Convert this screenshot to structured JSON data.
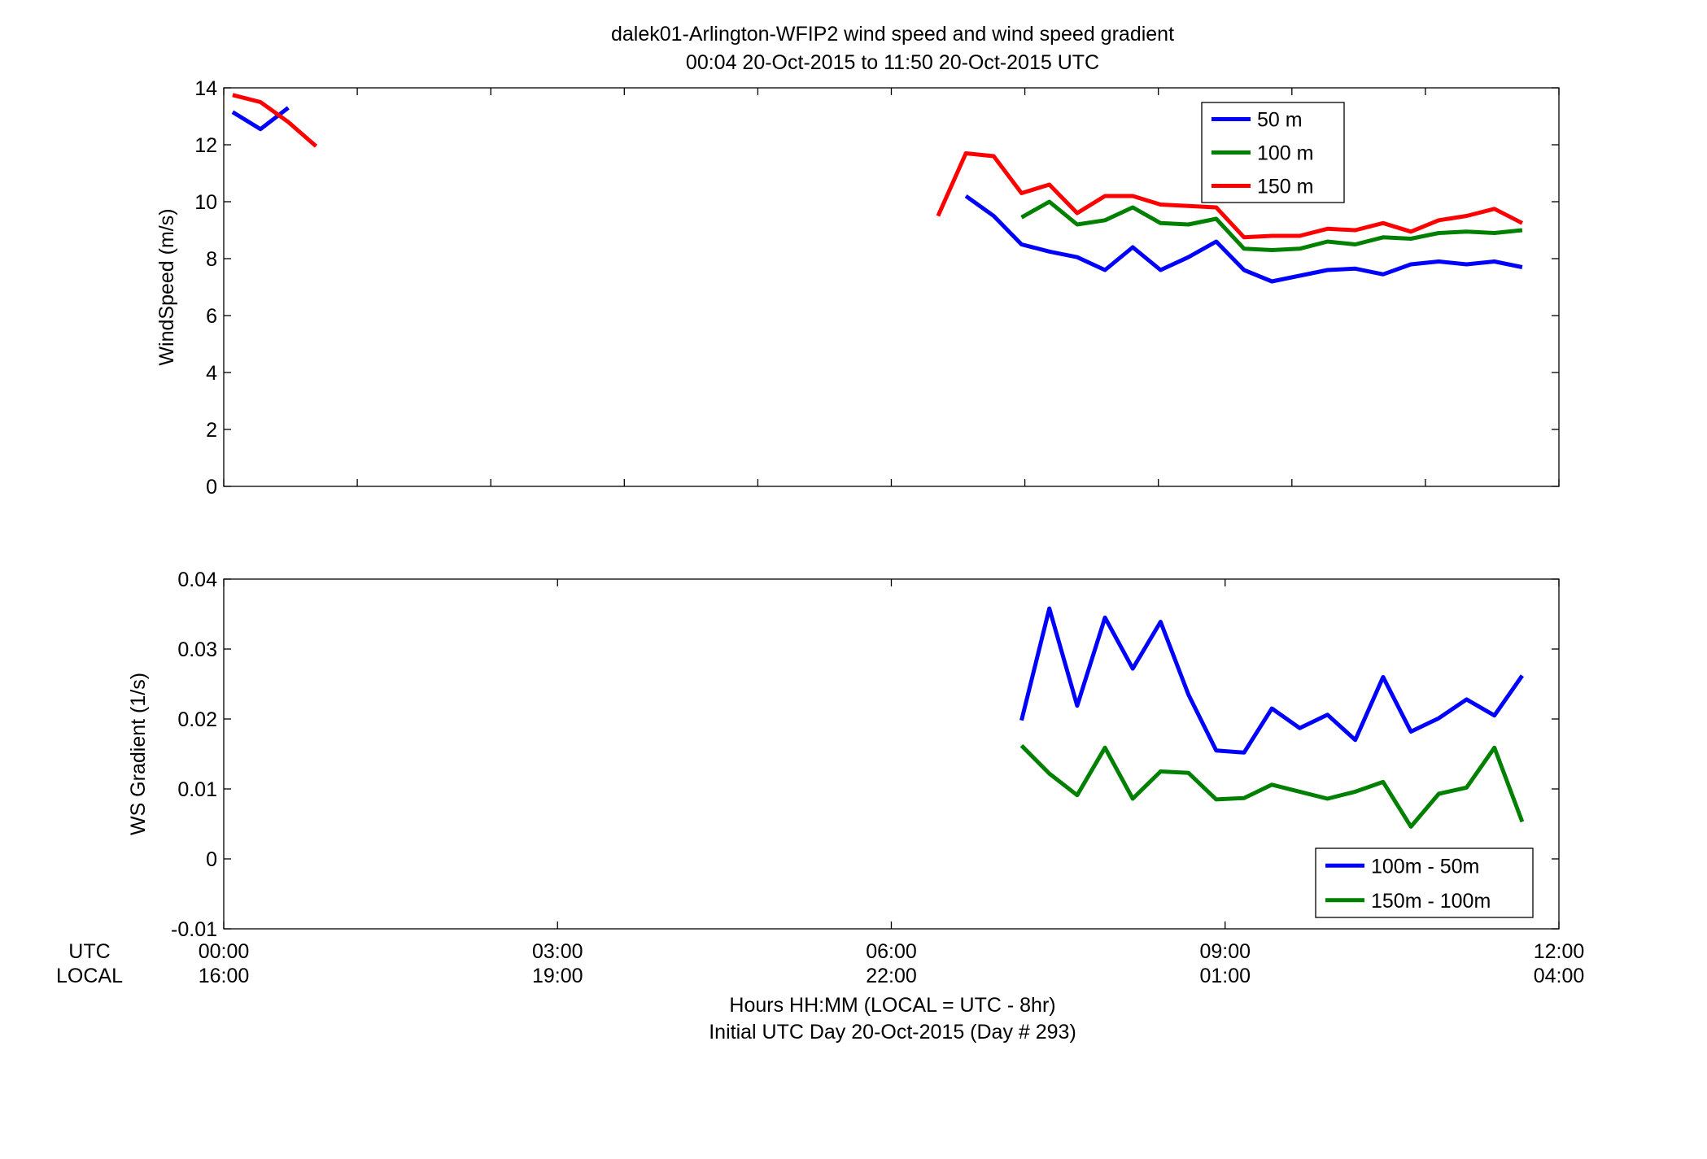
{
  "title_line1": "dalek01-Arlington-WFIP2  wind speed and wind speed gradient",
  "title_line2": "00:04 20-Oct-2015 to 11:50 20-Oct-2015  UTC",
  "xlabel_line1": "Hours HH:MM  (LOCAL = UTC - 8hr)",
  "xlabel_line2": "Initial UTC Day 20-Oct-2015 (Day # 293)",
  "row_label_utc": "UTC",
  "row_label_local": "LOCAL",
  "chart_data": [
    {
      "type": "line",
      "ylabel": "WindSpeed (m/s)",
      "xlim": [
        0,
        12
      ],
      "ylim": [
        0,
        14
      ],
      "yticks": [
        0,
        2,
        4,
        6,
        8,
        10,
        12,
        14
      ],
      "ytick_labels": [
        "0",
        "2",
        "4",
        "6",
        "8",
        "10",
        "12",
        "14"
      ],
      "xticks": [
        0,
        1.2,
        2.4,
        3.6,
        4.8,
        6,
        7.2,
        8.4,
        9.6,
        10.8,
        12
      ],
      "grid": false,
      "legend_position": "top-right",
      "series": [
        {
          "name": "50 m",
          "color": "#0000ff",
          "points": [
            [
              0.08,
              13.15
            ],
            [
              0.33,
              12.55
            ],
            [
              0.58,
              13.3
            ],
            null,
            [
              6.67,
              10.2
            ],
            [
              6.92,
              9.5
            ],
            [
              7.17,
              8.5
            ],
            [
              7.42,
              8.25
            ],
            [
              7.67,
              8.05
            ],
            [
              7.92,
              7.6
            ],
            [
              8.17,
              8.4
            ],
            [
              8.42,
              7.6
            ],
            [
              8.67,
              8.05
            ],
            [
              8.92,
              8.6
            ],
            [
              9.17,
              7.6
            ],
            [
              9.42,
              7.2
            ],
            [
              9.67,
              7.4
            ],
            [
              9.92,
              7.6
            ],
            [
              10.17,
              7.65
            ],
            [
              10.42,
              7.45
            ],
            [
              10.67,
              7.8
            ],
            [
              10.92,
              7.9
            ],
            [
              11.17,
              7.8
            ],
            [
              11.42,
              7.9
            ],
            [
              11.67,
              7.7
            ]
          ]
        },
        {
          "name": "100 m",
          "color": "#008000",
          "points": [
            [
              7.17,
              9.45
            ],
            [
              7.42,
              10.0
            ],
            [
              7.67,
              9.2
            ],
            [
              7.92,
              9.35
            ],
            [
              8.17,
              9.8
            ],
            [
              8.42,
              9.25
            ],
            [
              8.67,
              9.2
            ],
            [
              8.92,
              9.4
            ],
            [
              9.17,
              8.35
            ],
            [
              9.42,
              8.3
            ],
            [
              9.67,
              8.35
            ],
            [
              9.92,
              8.6
            ],
            [
              10.17,
              8.5
            ],
            [
              10.42,
              8.75
            ],
            [
              10.67,
              8.7
            ],
            [
              10.92,
              8.9
            ],
            [
              11.17,
              8.95
            ],
            [
              11.42,
              8.9
            ],
            [
              11.67,
              9.0
            ]
          ]
        },
        {
          "name": "150 m",
          "color": "#ff0000",
          "points": [
            [
              0.08,
              13.75
            ],
            [
              0.33,
              13.5
            ],
            [
              0.58,
              12.8
            ],
            [
              0.83,
              11.95
            ],
            null,
            [
              6.42,
              9.5
            ],
            [
              6.67,
              11.7
            ],
            [
              6.92,
              11.6
            ],
            [
              7.17,
              10.3
            ],
            [
              7.42,
              10.6
            ],
            [
              7.67,
              9.6
            ],
            [
              7.92,
              10.2
            ],
            [
              8.17,
              10.2
            ],
            [
              8.42,
              9.9
            ],
            [
              8.67,
              9.85
            ],
            [
              8.92,
              9.8
            ],
            [
              9.17,
              8.75
            ],
            [
              9.42,
              8.8
            ],
            [
              9.67,
              8.8
            ],
            [
              9.92,
              9.05
            ],
            [
              10.17,
              9.0
            ],
            [
              10.42,
              9.25
            ],
            [
              10.67,
              8.95
            ],
            [
              10.92,
              9.35
            ],
            [
              11.17,
              9.5
            ],
            [
              11.42,
              9.75
            ],
            [
              11.67,
              9.25
            ]
          ]
        }
      ]
    },
    {
      "type": "line",
      "ylabel": "WS Gradient (1/s)",
      "xlim": [
        0,
        12
      ],
      "ylim": [
        -0.01,
        0.04
      ],
      "yticks": [
        -0.01,
        0,
        0.01,
        0.02,
        0.03,
        0.04
      ],
      "ytick_labels": [
        "-0.01",
        "0",
        "0.01",
        "0.02",
        "0.03",
        "0.04"
      ],
      "xticks": [
        0,
        3,
        6,
        9,
        12
      ],
      "xtick_labels_utc": [
        "00:00",
        "03:00",
        "06:00",
        "09:00",
        "12:00"
      ],
      "xtick_labels_local": [
        "16:00",
        "19:00",
        "22:00",
        "01:00",
        "04:00"
      ],
      "grid": false,
      "legend_position": "bottom-right",
      "series": [
        {
          "name": "100m - 50m",
          "color": "#0000ff",
          "points": [
            [
              7.17,
              0.0198
            ],
            [
              7.42,
              0.0358
            ],
            [
              7.67,
              0.0219
            ],
            [
              7.92,
              0.0345
            ],
            [
              8.17,
              0.0272
            ],
            [
              8.42,
              0.0339
            ],
            [
              8.67,
              0.0235
            ],
            [
              8.92,
              0.0155
            ],
            [
              9.17,
              0.0152
            ],
            [
              9.42,
              0.0215
            ],
            [
              9.67,
              0.0187
            ],
            [
              9.92,
              0.0206
            ],
            [
              10.17,
              0.017
            ],
            [
              10.42,
              0.026
            ],
            [
              10.67,
              0.0182
            ],
            [
              10.92,
              0.0201
            ],
            [
              11.17,
              0.0228
            ],
            [
              11.42,
              0.0205
            ],
            [
              11.67,
              0.0262
            ]
          ]
        },
        {
          "name": "150m - 100m",
          "color": "#008000",
          "points": [
            [
              7.17,
              0.0162
            ],
            [
              7.42,
              0.0122
            ],
            [
              7.67,
              0.0091
            ],
            [
              7.92,
              0.0159
            ],
            [
              8.17,
              0.0086
            ],
            [
              8.42,
              0.0125
            ],
            [
              8.67,
              0.0123
            ],
            [
              8.92,
              0.0085
            ],
            [
              9.17,
              0.0087
            ],
            [
              9.42,
              0.0106
            ],
            [
              9.67,
              0.0096
            ],
            [
              9.92,
              0.0086
            ],
            [
              10.17,
              0.0096
            ],
            [
              10.42,
              0.011
            ],
            [
              10.67,
              0.0046
            ],
            [
              10.92,
              0.0093
            ],
            [
              11.17,
              0.0102
            ],
            [
              11.42,
              0.0159
            ],
            [
              11.67,
              0.0053
            ]
          ]
        }
      ]
    }
  ]
}
